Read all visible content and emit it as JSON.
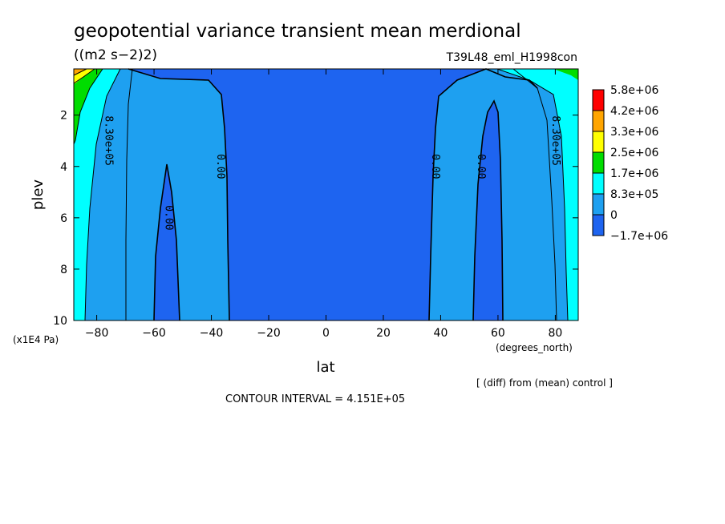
{
  "chart_data": {
    "type": "contour",
    "title": "geopotential variance transient mean merdional",
    "units": "((m2 s−2)2)",
    "run_id": "T39L48_eml_H1998con",
    "xlabel": "lat",
    "x_units": "(degrees_north)",
    "ylabel": "plev",
    "y_units": "(x1E4 Pa)",
    "xlim": [
      -88,
      88
    ],
    "ylim": [
      10,
      0.2
    ],
    "x_ticks": [
      -80,
      -60,
      -40,
      -20,
      0,
      20,
      40,
      60,
      80
    ],
    "x_tick_labels": [
      "−80",
      "−60",
      "−40",
      "−20",
      "0",
      "20",
      "40",
      "60",
      "80"
    ],
    "y_ticks": [
      2,
      4,
      6,
      8,
      10
    ],
    "y_tick_labels": [
      "2",
      "4",
      "6",
      "8",
      "10"
    ],
    "contour_interval": "CONTOUR INTERVAL = 4.151E+05",
    "note": "[ (diff) from (mean) control ]",
    "colorbar": {
      "levels": [
        "5.8e+06",
        "4.2e+06",
        "3.3e+06",
        "2.5e+06",
        "1.7e+06",
        "8.3e+05",
        "0",
        "−1.7e+06"
      ],
      "colors": [
        "#ff0000",
        "#ffa500",
        "#ffff00",
        "#00dd00",
        "#00ffff",
        "#1ea0f0",
        "#1e64f0"
      ]
    },
    "contour_labels": [
      {
        "text": "8.30e+05",
        "lat": -76,
        "plev": 3.0
      },
      {
        "text": "0.00",
        "lat": -37,
        "plev": 4.0
      },
      {
        "text": "0.00",
        "lat": -55,
        "plev": 6.0
      },
      {
        "text": "0.00",
        "lat": 38,
        "plev": 4.0
      },
      {
        "text": "0.00",
        "lat": 54,
        "plev": 4.0
      },
      {
        "text": "8.30e+05",
        "lat": 80,
        "plev": 3.0
      }
    ]
  }
}
